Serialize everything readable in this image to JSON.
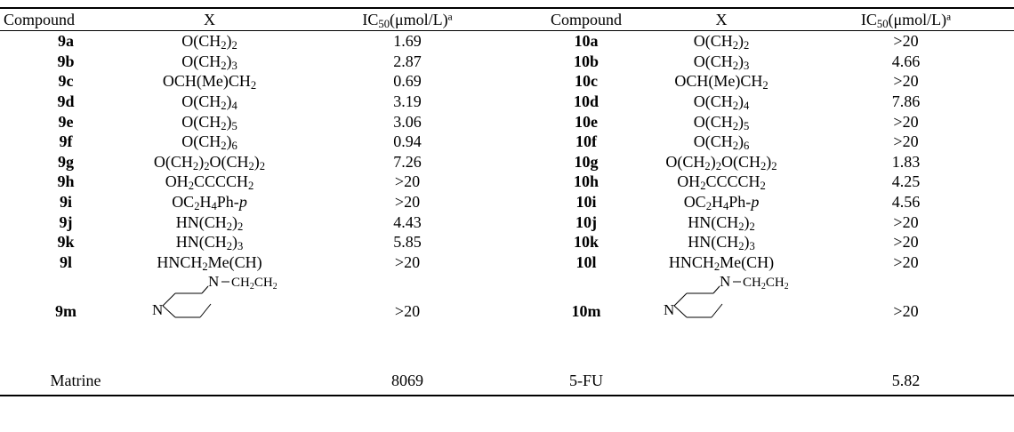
{
  "header": {
    "compound": "Compound",
    "x": "X",
    "ic50_pre": "IC",
    "ic50_sub": "50",
    "ic50_post": "(μmol/L)",
    "ic50_sup": "a"
  },
  "rows": [
    {
      "c1": "9a",
      "x1": [
        [
          "O(CH",
          ""
        ],
        [
          "2",
          "sub"
        ],
        [
          ")",
          ""
        ],
        [
          "2",
          "sub"
        ]
      ],
      "v1": "1.69",
      "c2": "10a",
      "x2": [
        [
          "O(CH",
          ""
        ],
        [
          "2",
          "sub"
        ],
        [
          ")",
          ""
        ],
        [
          "2",
          "sub"
        ]
      ],
      "v2": ">20"
    },
    {
      "c1": "9b",
      "x1": [
        [
          "O(CH",
          ""
        ],
        [
          "2",
          "sub"
        ],
        [
          ")",
          ""
        ],
        [
          "3",
          "sub"
        ]
      ],
      "v1": "2.87",
      "c2": "10b",
      "x2": [
        [
          "O(CH",
          ""
        ],
        [
          "2",
          "sub"
        ],
        [
          ")",
          ""
        ],
        [
          "3",
          "sub"
        ]
      ],
      "v2": "4.66"
    },
    {
      "c1": "9c",
      "x1": [
        [
          "OCH(Me)CH",
          ""
        ],
        [
          "2",
          "sub"
        ]
      ],
      "v1": "0.69",
      "c2": "10c",
      "x2": [
        [
          "OCH(Me)CH",
          ""
        ],
        [
          "2",
          "sub"
        ]
      ],
      "v2": ">20"
    },
    {
      "c1": "9d",
      "x1": [
        [
          "O(CH",
          ""
        ],
        [
          "2",
          "sub"
        ],
        [
          ")",
          ""
        ],
        [
          "4",
          "sub"
        ]
      ],
      "v1": "3.19",
      "c2": "10d",
      "x2": [
        [
          "O(CH",
          ""
        ],
        [
          "2",
          "sub"
        ],
        [
          ")",
          ""
        ],
        [
          "4",
          "sub"
        ]
      ],
      "v2": "7.86"
    },
    {
      "c1": "9e",
      "x1": [
        [
          "O(CH",
          ""
        ],
        [
          "2",
          "sub"
        ],
        [
          ")",
          ""
        ],
        [
          "5",
          "sub"
        ]
      ],
      "v1": "3.06",
      "c2": "10e",
      "x2": [
        [
          "O(CH",
          ""
        ],
        [
          "2",
          "sub"
        ],
        [
          ")",
          ""
        ],
        [
          "5",
          "sub"
        ]
      ],
      "v2": ">20"
    },
    {
      "c1": "9f",
      "x1": [
        [
          "O(CH",
          ""
        ],
        [
          "2",
          "sub"
        ],
        [
          ")",
          ""
        ],
        [
          "6",
          "sub"
        ]
      ],
      "v1": "0.94",
      "c2": "10f",
      "x2": [
        [
          "O(CH",
          ""
        ],
        [
          "2",
          "sub"
        ],
        [
          ")",
          ""
        ],
        [
          "6",
          "sub"
        ]
      ],
      "v2": ">20"
    },
    {
      "c1": "9g",
      "x1": [
        [
          "O(CH",
          ""
        ],
        [
          "2",
          "sub"
        ],
        [
          ")",
          ""
        ],
        [
          "2",
          "sub"
        ],
        [
          "O(CH",
          ""
        ],
        [
          "2",
          "sub"
        ],
        [
          ")",
          ""
        ],
        [
          "2",
          "sub"
        ]
      ],
      "v1": "7.26",
      "c2": "10g",
      "x2": [
        [
          "O(CH",
          ""
        ],
        [
          "2",
          "sub"
        ],
        [
          ")",
          ""
        ],
        [
          "2",
          "sub"
        ],
        [
          "O(CH",
          ""
        ],
        [
          "2",
          "sub"
        ],
        [
          ")",
          ""
        ],
        [
          "2",
          "sub"
        ]
      ],
      "v2": "1.83"
    },
    {
      "c1": "9h",
      "x1": [
        [
          "OH",
          ""
        ],
        [
          "2",
          "sub"
        ],
        [
          "CCCCH",
          ""
        ],
        [
          "2",
          "sub"
        ]
      ],
      "v1": ">20",
      "c2": "10h",
      "x2": [
        [
          "OH",
          ""
        ],
        [
          "2",
          "sub"
        ],
        [
          "CCCCH",
          ""
        ],
        [
          "2",
          "sub"
        ]
      ],
      "v2": "4.25"
    },
    {
      "c1": "9i",
      "x1": [
        [
          "OC",
          ""
        ],
        [
          "2",
          "sub"
        ],
        [
          "H",
          ""
        ],
        [
          "4",
          "sub"
        ],
        [
          "Ph-",
          ""
        ],
        [
          "p",
          "i"
        ]
      ],
      "v1": ">20",
      "c2": "10i",
      "x2": [
        [
          "OC",
          ""
        ],
        [
          "2",
          "sub"
        ],
        [
          "H",
          ""
        ],
        [
          "4",
          "sub"
        ],
        [
          "Ph-",
          ""
        ],
        [
          "p",
          "i"
        ]
      ],
      "v2": "4.56"
    },
    {
      "c1": "9j",
      "x1": [
        [
          "HN(CH",
          ""
        ],
        [
          "2",
          "sub"
        ],
        [
          ")",
          ""
        ],
        [
          "2",
          "sub"
        ]
      ],
      "v1": "4.43",
      "c2": "10j",
      "x2": [
        [
          "HN(CH",
          ""
        ],
        [
          "2",
          "sub"
        ],
        [
          ")",
          ""
        ],
        [
          "2",
          "sub"
        ]
      ],
      "v2": ">20"
    },
    {
      "c1": "9k",
      "x1": [
        [
          "HN(CH",
          ""
        ],
        [
          "2",
          "sub"
        ],
        [
          ")",
          ""
        ],
        [
          "3",
          "sub"
        ]
      ],
      "v1": "5.85",
      "c2": "10k",
      "x2": [
        [
          "HN(CH",
          ""
        ],
        [
          "2",
          "sub"
        ],
        [
          ")",
          ""
        ],
        [
          "3",
          "sub"
        ]
      ],
      "v2": ">20"
    },
    {
      "c1": "9l",
      "x1": [
        [
          "HNCH",
          ""
        ],
        [
          "2",
          "sub"
        ],
        [
          "Me(CH)",
          ""
        ]
      ],
      "v1": ">20",
      "c2": "10l",
      "x2": [
        [
          "HNCH",
          ""
        ],
        [
          "2",
          "sub"
        ],
        [
          "Me(CH)",
          ""
        ]
      ],
      "v2": ">20"
    }
  ],
  "piperazine_row": {
    "c1": "9m",
    "v1": ">20",
    "c2": "10m",
    "v2": ">20",
    "n_left": "N",
    "n_right": "N",
    "chain_pre": "CH",
    "chain_sub1": "2",
    "chain_mid": "CH",
    "chain_sub2": "2",
    "dash": "−"
  },
  "last_row": {
    "c1": "Matrine",
    "v1": "8069",
    "c2": "5-FU",
    "v2": "5.82"
  }
}
